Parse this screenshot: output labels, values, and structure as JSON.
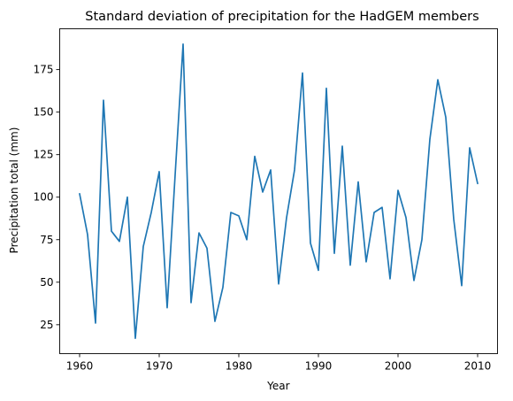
{
  "chart_data": {
    "type": "line",
    "title": "Standard deviation of precipitation for the HadGEM members",
    "xlabel": "Year",
    "ylabel": "Precipitation total (mm)",
    "xlim": [
      1957.5,
      2012.5
    ],
    "ylim": [
      8,
      199
    ],
    "x_ticks": [
      1960,
      1970,
      1980,
      1990,
      2000,
      2010
    ],
    "y_ticks": [
      25,
      50,
      75,
      100,
      125,
      150,
      175
    ],
    "grid": false,
    "legend": "none",
    "color": "#1f77b4",
    "series": [
      {
        "x": [
          1960,
          1961,
          1962,
          1963,
          1964,
          1965,
          1966,
          1967,
          1968,
          1969,
          1970,
          1971,
          1972,
          1973,
          1974,
          1975,
          1976,
          1977,
          1978,
          1979,
          1980,
          1981,
          1982,
          1983,
          1984,
          1985,
          1986,
          1987,
          1988,
          1989,
          1990,
          1991,
          1992,
          1993,
          1994,
          1995,
          1996,
          1997,
          1998,
          1999,
          2000,
          2001,
          2002,
          2003,
          2004,
          2005,
          2006,
          2007,
          2008,
          2009,
          2010
        ],
        "values": [
          102,
          78,
          26,
          157,
          80,
          74,
          100,
          17,
          71,
          91,
          115,
          35,
          113,
          190,
          38,
          79,
          70,
          27,
          47,
          91,
          89,
          75,
          124,
          103,
          116,
          49,
          88,
          116,
          173,
          73,
          57,
          164,
          67,
          130,
          60,
          109,
          62,
          91,
          94,
          52,
          104,
          88,
          51,
          75,
          134,
          169,
          147,
          87,
          48,
          129,
          108
        ]
      }
    ]
  }
}
